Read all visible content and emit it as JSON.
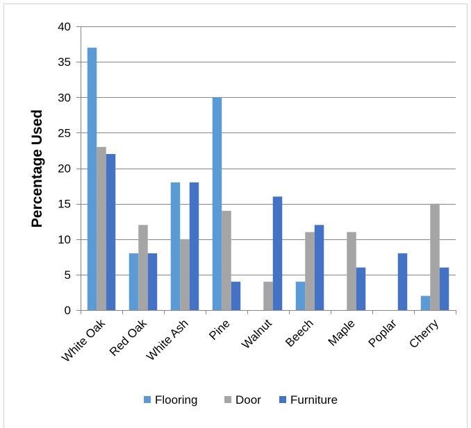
{
  "chart_data": {
    "type": "bar",
    "title": "",
    "xlabel": "",
    "ylabel": "Percentage Used",
    "ylim": [
      0,
      40
    ],
    "yticks": [
      0,
      5,
      10,
      15,
      20,
      25,
      30,
      35,
      40
    ],
    "grid": true,
    "legend_position": "bottom",
    "categories": [
      "White Oak",
      "Red Oak",
      "White Ash",
      "Pine",
      "Walnut",
      "Beech",
      "Maple",
      "Poplar",
      "Cherry"
    ],
    "series": [
      {
        "name": "Flooring",
        "color": "#5B9BD5",
        "values": [
          37,
          8,
          18,
          30,
          0,
          4,
          0,
          0,
          2
        ]
      },
      {
        "name": "Door",
        "color": "#A5A5A5",
        "values": [
          23,
          12,
          10,
          14,
          4,
          11,
          11,
          0,
          15
        ]
      },
      {
        "name": "Furniture",
        "color": "#4472C4",
        "values": [
          22,
          8,
          18,
          4,
          16,
          12,
          6,
          8,
          6
        ]
      }
    ]
  }
}
